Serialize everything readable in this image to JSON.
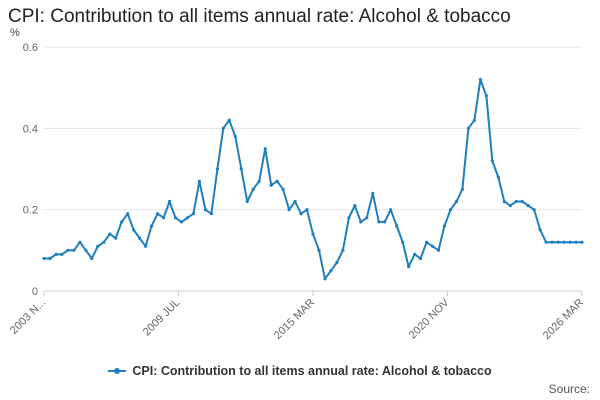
{
  "colors": {
    "series": "#1f7fbe"
  },
  "source_label": "Source:",
  "chart_data": {
    "type": "line",
    "title": "CPI: Contribution to all items annual rate: Alcohol & tobacco",
    "ylabel": "%",
    "xlabel": "",
    "ylim": [
      0,
      0.6
    ],
    "yticks": [
      "0",
      "0.2",
      "0.4",
      "0.6"
    ],
    "xticks": [
      "2003 N...",
      "2009 JUL",
      "2015 MAR",
      "2020 NOV",
      "2026 MAR"
    ],
    "grid": true,
    "legend_position": "bottom",
    "series": [
      {
        "name": "CPI: Contribution to all items annual rate: Alcohol & tobacco",
        "x": [
          "2003 NOV",
          "2004 FEB",
          "2004 MAY",
          "2004 AUG",
          "2004 NOV",
          "2005 FEB",
          "2005 MAY",
          "2005 AUG",
          "2005 NOV",
          "2006 FEB",
          "2006 MAY",
          "2006 AUG",
          "2006 NOV",
          "2007 FEB",
          "2007 MAY",
          "2007 AUG",
          "2007 NOV",
          "2008 FEB",
          "2008 MAY",
          "2008 AUG",
          "2008 NOV",
          "2009 FEB",
          "2009 MAY",
          "2009 JUL",
          "2009 OCT",
          "2010 JAN",
          "2010 APR",
          "2010 JUL",
          "2010 OCT",
          "2011 JAN",
          "2011 APR",
          "2011 JUL",
          "2011 OCT",
          "2012 JAN",
          "2012 APR",
          "2012 JUL",
          "2012 OCT",
          "2013 JAN",
          "2013 APR",
          "2013 JUL",
          "2013 OCT",
          "2014 JAN",
          "2014 APR",
          "2014 JUL",
          "2014 OCT",
          "2015 JAN",
          "2015 MAR",
          "2015 JUN",
          "2015 SEP",
          "2015 DEC",
          "2016 MAR",
          "2016 JUN",
          "2016 SEP",
          "2016 DEC",
          "2017 MAR",
          "2017 JUN",
          "2017 SEP",
          "2017 DEC",
          "2018 MAR",
          "2018 JUN",
          "2018 SEP",
          "2018 DEC",
          "2019 MAR",
          "2019 JUN",
          "2019 SEP",
          "2019 DEC",
          "2020 MAR",
          "2020 JUN",
          "2020 SEP",
          "2020 NOV",
          "2021 FEB",
          "2021 MAY",
          "2021 AUG",
          "2021 NOV",
          "2022 FEB",
          "2022 MAY",
          "2022 AUG",
          "2022 NOV",
          "2023 FEB",
          "2023 MAY",
          "2023 AUG",
          "2023 NOV",
          "2024 FEB",
          "2024 MAY",
          "2024 AUG",
          "2024 NOV",
          "2025 FEB",
          "2025 MAY",
          "2025 AUG",
          "2025 NOV",
          "2026 MAR"
        ],
        "values": [
          0.08,
          0.08,
          0.09,
          0.09,
          0.1,
          0.1,
          0.12,
          0.1,
          0.08,
          0.11,
          0.12,
          0.14,
          0.13,
          0.17,
          0.19,
          0.15,
          0.13,
          0.11,
          0.16,
          0.19,
          0.18,
          0.22,
          0.18,
          0.17,
          0.18,
          0.19,
          0.27,
          0.2,
          0.19,
          0.3,
          0.4,
          0.42,
          0.38,
          0.3,
          0.22,
          0.25,
          0.27,
          0.35,
          0.26,
          0.27,
          0.25,
          0.2,
          0.22,
          0.19,
          0.2,
          0.14,
          0.1,
          0.03,
          0.05,
          0.07,
          0.1,
          0.18,
          0.21,
          0.17,
          0.18,
          0.24,
          0.17,
          0.17,
          0.2,
          0.16,
          0.12,
          0.06,
          0.09,
          0.08,
          0.12,
          0.11,
          0.1,
          0.16,
          0.2,
          0.22,
          0.25,
          0.4,
          0.42,
          0.52,
          0.48,
          0.32,
          0.28,
          0.22,
          0.21,
          0.22,
          0.22,
          0.21,
          0.2,
          0.15,
          0.12,
          0.12,
          0.12,
          0.12,
          0.12,
          0.12,
          0.12
        ]
      }
    ]
  }
}
